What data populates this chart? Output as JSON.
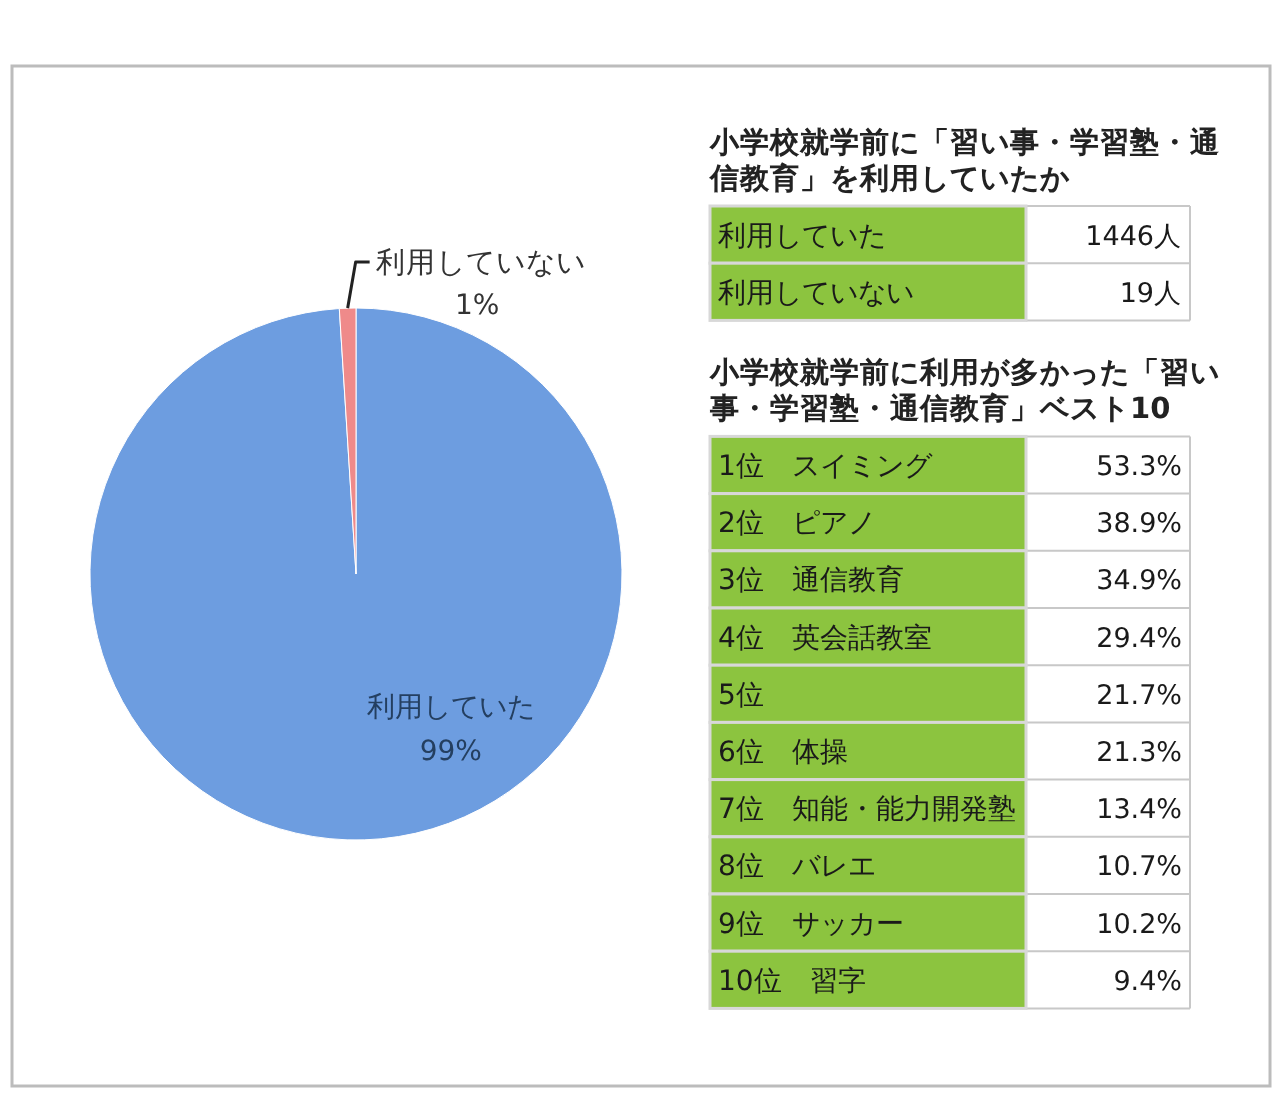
{
  "chart_data": [
    {
      "type": "pie",
      "categories": [
        "利用していた",
        "利用していない"
      ],
      "values": [
        99,
        1
      ],
      "colors": [
        "#6d9de0",
        "#ef8a8a"
      ],
      "value_labels": [
        "99%",
        "1%"
      ]
    },
    {
      "type": "other",
      "title": "小学校就学前に「習い事・学習塾・通信教育」を利用していたか",
      "categories": [
        "利用していた",
        "利用していない"
      ],
      "values": [
        1446,
        19
      ],
      "value_labels": [
        "1446人",
        "19人"
      ],
      "color": "#8cc43f"
    },
    {
      "type": "other",
      "title": "小学校就学前に利用が多かった「習い事・学習塾・通信教育」ベスト10",
      "categories": [
        "1位　スイミング",
        "2位　ピアノ",
        "3位　通信教育",
        "4位　英会話教室",
        "5位",
        "6位　体操",
        "7位　知能・能力開発塾",
        "8位　バレエ",
        "9位　サッカー",
        "10位　習字"
      ],
      "values": [
        53.3,
        38.9,
        34.9,
        29.4,
        21.7,
        21.3,
        13.4,
        10.7,
        10.2,
        9.4
      ],
      "value_labels": [
        "53.3%",
        "38.9%",
        "34.9%",
        "29.4%",
        "21.7%",
        "21.3%",
        "13.4%",
        "10.7%",
        "10.2%",
        "9.4%"
      ],
      "color": "#8cc43f"
    }
  ]
}
